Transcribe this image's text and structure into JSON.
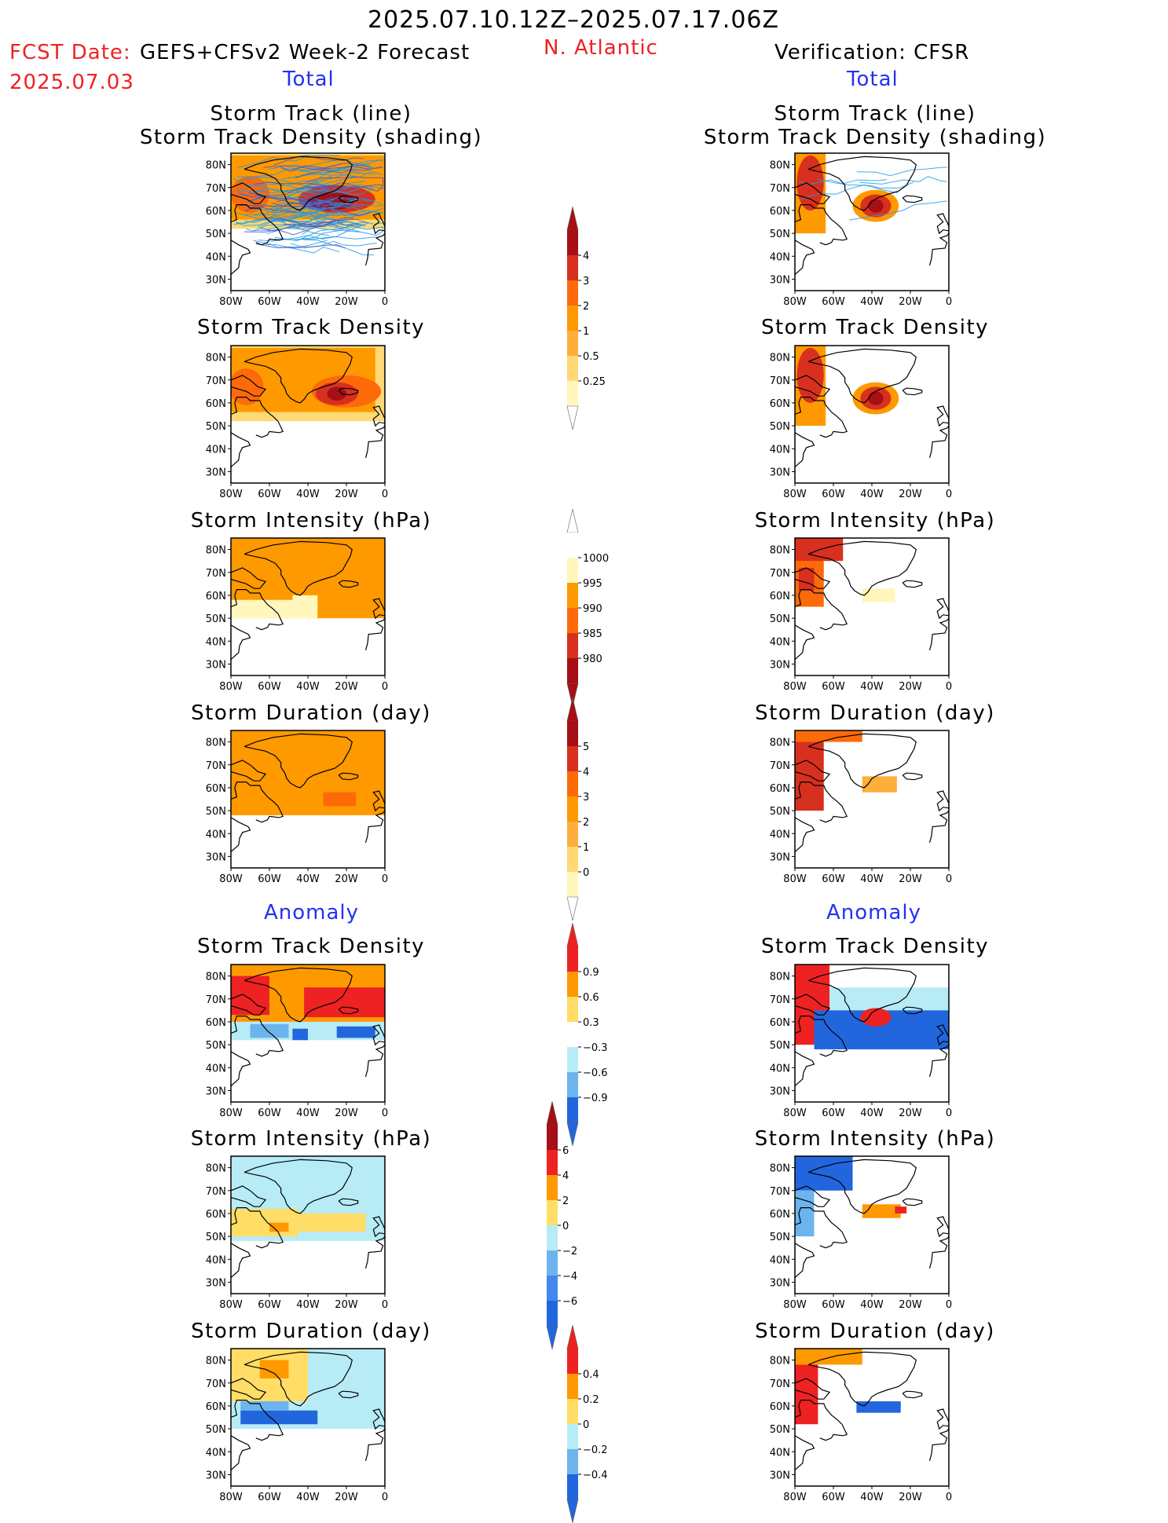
{
  "header": {
    "period": "2025.07.10.12Z–2025.07.17.06Z",
    "fcst_date_label": "FCST Date:",
    "fcst_date_value": "2025.07.03",
    "forecast_title": "GEFS+CFSv2 Week-2 Forecast",
    "region": "N. Atlantic",
    "verification_title": "Verification: CFSR",
    "total_left": "Total",
    "total_right": "Total",
    "anomaly_left": "Anomaly",
    "anomaly_right": "Anomaly"
  },
  "map_axes": {
    "lat_ticks": [
      "80N",
      "70N",
      "60N",
      "50N",
      "40N",
      "30N"
    ],
    "lon_ticks": [
      "80W",
      "60W",
      "40W",
      "20W",
      "0"
    ]
  },
  "panels": [
    {
      "id": "fc-track",
      "column": "forecast",
      "title_lines": [
        "Storm Track (line)",
        "Storm Track Density (shading)"
      ],
      "field": "track_density",
      "has_tracks": true
    },
    {
      "id": "vf-track",
      "column": "verification",
      "title_lines": [
        "Storm Track (line)",
        "Storm Track Density (shading)"
      ],
      "field": "track_density",
      "has_tracks": true
    },
    {
      "id": "fc-density",
      "column": "forecast",
      "title_lines": [
        "Storm Track Density"
      ],
      "field": "track_density"
    },
    {
      "id": "vf-density",
      "column": "verification",
      "title_lines": [
        "Storm Track Density"
      ],
      "field": "track_density"
    },
    {
      "id": "fc-intensity",
      "column": "forecast",
      "title_lines": [
        "Storm Intensity (hPa)"
      ],
      "field": "intensity"
    },
    {
      "id": "vf-intensity",
      "column": "verification",
      "title_lines": [
        "Storm Intensity (hPa)"
      ],
      "field": "intensity"
    },
    {
      "id": "fc-duration",
      "column": "forecast",
      "title_lines": [
        "Storm Duration (day)"
      ],
      "field": "duration"
    },
    {
      "id": "vf-duration",
      "column": "verification",
      "title_lines": [
        "Storm Duration (day)"
      ],
      "field": "duration"
    },
    {
      "id": "fc-density-anom",
      "column": "forecast",
      "title_lines": [
        "Storm Track Density"
      ],
      "field": "track_density_anomaly"
    },
    {
      "id": "vf-density-anom",
      "column": "verification",
      "title_lines": [
        "Storm Track Density"
      ],
      "field": "track_density_anomaly"
    },
    {
      "id": "fc-intensity-anom",
      "column": "forecast",
      "title_lines": [
        "Storm Intensity (hPa)"
      ],
      "field": "intensity_anomaly"
    },
    {
      "id": "vf-intensity-anom",
      "column": "verification",
      "title_lines": [
        "Storm Intensity (hPa)"
      ],
      "field": "intensity_anomaly"
    },
    {
      "id": "fc-duration-anom",
      "column": "forecast",
      "title_lines": [
        "Storm Duration (day)"
      ],
      "field": "duration_anomaly"
    },
    {
      "id": "vf-duration-anom",
      "column": "verification",
      "title_lines": [
        "Storm Duration (day)"
      ],
      "field": "duration_anomaly"
    }
  ],
  "colorbars": [
    {
      "id": "track-density-scale",
      "labels": [
        "4",
        "3",
        "2",
        "1",
        "0.5",
        "0.25"
      ],
      "colors": [
        "#a50f15",
        "#d7301f",
        "#fc6a0a",
        "#ff9900",
        "#fdae3b",
        "#fed976",
        "#fff7bc"
      ],
      "top_arrow": "#a50f15",
      "bottom_arrow": "#ffffff"
    },
    {
      "id": "intensity-scale",
      "labels": [
        "1000",
        "995",
        "990",
        "985",
        "980"
      ],
      "colors": [
        "#ffffff",
        "#fff7bc",
        "#ff9900",
        "#fc6a0a",
        "#d7301f",
        "#a50f15"
      ],
      "top_arrow": "#ffffff",
      "bottom_arrow": "#a50f15"
    },
    {
      "id": "duration-scale",
      "labels": [
        "5",
        "4",
        "3",
        "2",
        "1",
        "0"
      ],
      "colors": [
        "#a50f15",
        "#d7301f",
        "#fc6a0a",
        "#ff9900",
        "#fdae3b",
        "#fed976",
        "#fff7bc"
      ],
      "top_arrow": "#a50f15",
      "bottom_arrow": "#ffffff"
    },
    {
      "id": "density-anomaly-scale",
      "labels": [
        "0.9",
        "0.6",
        "0.3",
        "−0.3",
        "−0.6",
        "−0.9"
      ],
      "colors": [
        "#ee2222",
        "#ff9900",
        "#ffdd66",
        "#ffffff",
        "#b7ecf7",
        "#6cb4ee",
        "#2266dd"
      ],
      "top_arrow": "#ee2222",
      "bottom_arrow": "#2266dd"
    },
    {
      "id": "intensity-anomaly-scale",
      "labels": [
        "6",
        "4",
        "2",
        "0",
        "−2",
        "−4",
        "−6"
      ],
      "colors": [
        "#a50f15",
        "#ee2222",
        "#ff9900",
        "#ffdd66",
        "#b7ecf7",
        "#6cb4ee",
        "#4488ee",
        "#2266dd"
      ],
      "top_arrow": "#a50f15",
      "bottom_arrow": "#2266dd"
    },
    {
      "id": "duration-anomaly-scale",
      "labels": [
        "0.4",
        "0.2",
        "0",
        "−0.2",
        "−0.4"
      ],
      "colors": [
        "#ee2222",
        "#ff9900",
        "#ffdd66",
        "#b7ecf7",
        "#6cb4ee",
        "#2266dd"
      ],
      "top_arrow": "#ee2222",
      "bottom_arrow": "#2266dd"
    }
  ],
  "chart_data": {
    "type": "heatmap",
    "title": "2025.07.10.12Z–2025.07.17.06Z",
    "xlabel": "",
    "ylabel": "",
    "x_ticks": [
      "80W",
      "60W",
      "40W",
      "20W",
      "0"
    ],
    "y_ticks": [
      "80N",
      "70N",
      "60N",
      "50N",
      "40N",
      "30N"
    ],
    "xlim": [
      -80,
      0
    ],
    "ylim": [
      25,
      85
    ],
    "grid": false,
    "series": [
      {
        "panel": "fc-density",
        "values": "forecast track density 0.25–4, max near 60–65N 25W"
      },
      {
        "panel": "vf-density",
        "values": "verification track density 0.25–4, max near 62N 38W"
      },
      {
        "panel": "fc-intensity",
        "values": "990–995 hPa north of 55N, 995–1000 hPa 50–58N"
      },
      {
        "panel": "vf-intensity",
        "values": "980–990 hPa near 70–80N 70W, 995–1000 hPa near 60N 35W"
      },
      {
        "panel": "fc-duration",
        "values": "2–3 days north of 50N, 3–4 days near 55N 25W"
      },
      {
        "panel": "vf-duration",
        "values": "4–5 days near 65N 70W, 1–2 days near 62N 35W"
      },
      {
        "panel": "fc-density-anom",
        "values": "+0.6 to +0.9 north of 63N, −0.3 to −0.9 50–58N"
      },
      {
        "panel": "vf-density-anom",
        "values": "+0.9 near 65N 70W and 62N 35W, −0.9 45–62N"
      },
      {
        "panel": "fc-intensity-anom",
        "values": "−2 to 0 north of 63N, 0 to +4 50–62N"
      },
      {
        "panel": "vf-intensity-anom",
        "values": "−6 to −4 near 75–80N, +2 to +6 near 60N 30W"
      },
      {
        "panel": "fc-duration-anom",
        "values": "+0.2 to +0.4 near 70–80N, −0.2 to −0.4 50–58N"
      },
      {
        "panel": "vf-duration-anom",
        "values": "+0.4 near 65N 70W, −0.4 near 58N 40W"
      }
    ]
  }
}
